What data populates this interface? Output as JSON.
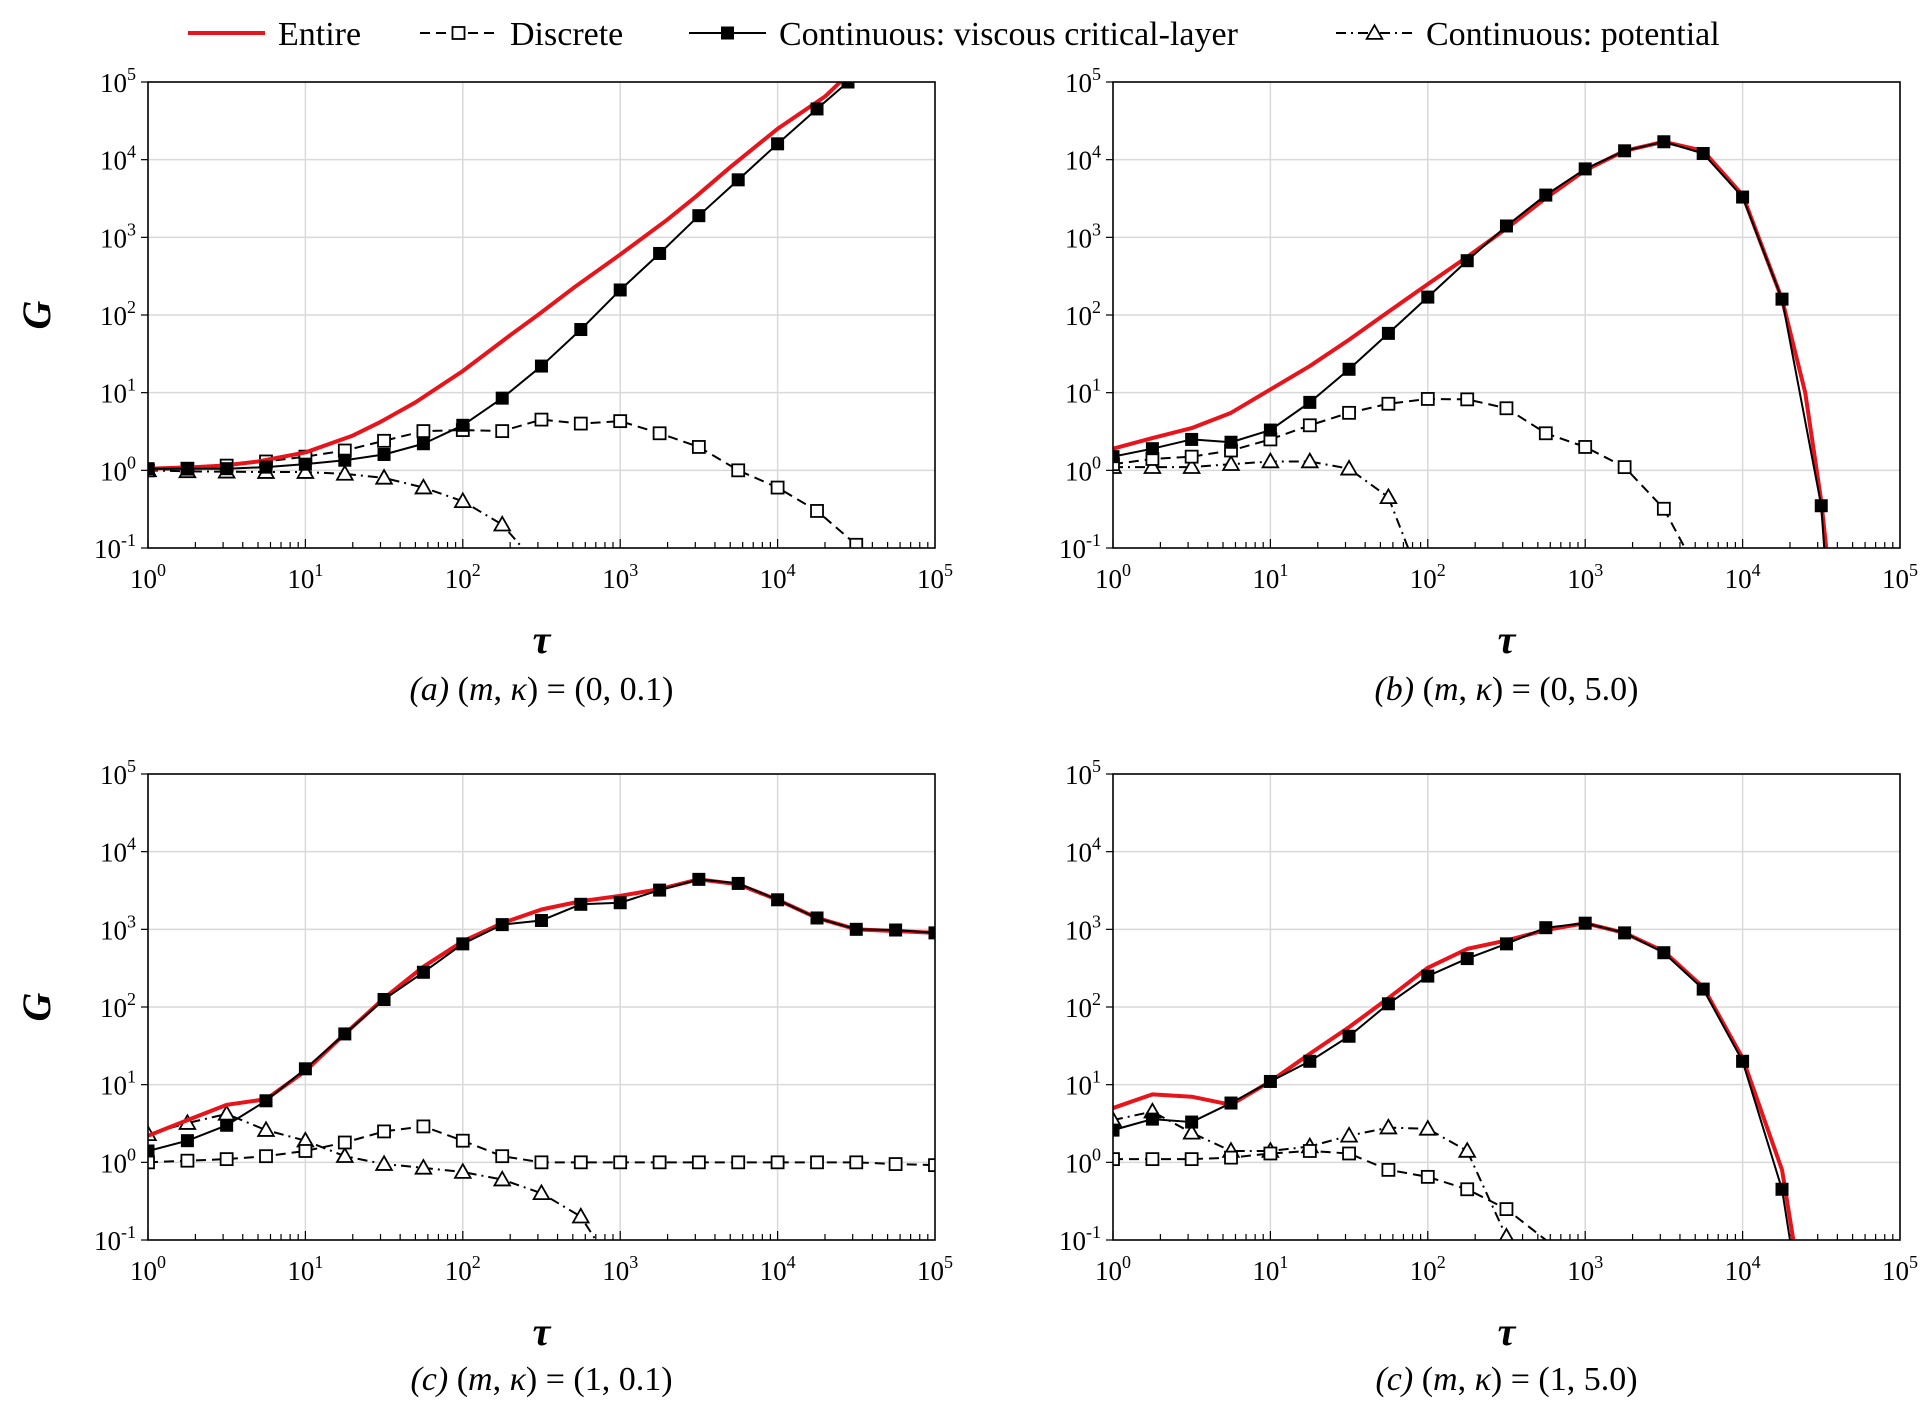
{
  "legend": [
    {
      "label": "Entire",
      "series_key": "entire",
      "color": "#e8141b",
      "style": "solid",
      "marker": "none"
    },
    {
      "label": "Discrete",
      "series_key": "discrete",
      "color": "#000000",
      "style": "dashed",
      "marker": "open-square"
    },
    {
      "label": "Continuous: viscous critical-layer",
      "series_key": "viscous",
      "color": "#000000",
      "style": "solid",
      "marker": "filled-square"
    },
    {
      "label": "Continuous: potential",
      "series_key": "potential",
      "color": "#000000",
      "style": "dash-dot",
      "marker": "open-triangle"
    }
  ],
  "chart_data": [
    {
      "id": "a",
      "type": "line",
      "caption": "(a) (m, κ) = (0, 0.1)",
      "xlabel": "τ",
      "ylabel": "G",
      "xscale": "log",
      "yscale": "log",
      "xlim": [
        1,
        100000
      ],
      "ylim": [
        0.1,
        100000
      ],
      "grid": true,
      "x_ticks": [
        "10^0",
        "10^1",
        "10^2",
        "10^3",
        "10^4",
        "10^5"
      ],
      "y_ticks": [
        "10^-1",
        "10^0",
        "10^1",
        "10^2",
        "10^3",
        "10^4",
        "10^5"
      ],
      "series": {
        "entire": [
          [
            1,
            1.05
          ],
          [
            2,
            1.1
          ],
          [
            3,
            1.15
          ],
          [
            5,
            1.3
          ],
          [
            10,
            1.7
          ],
          [
            20,
            2.8
          ],
          [
            30,
            4.2
          ],
          [
            50,
            7.5
          ],
          [
            100,
            19
          ],
          [
            200,
            55
          ],
          [
            300,
            100
          ],
          [
            500,
            220
          ],
          [
            1000,
            600
          ],
          [
            2000,
            1700
          ],
          [
            3000,
            3300
          ],
          [
            5000,
            8000
          ],
          [
            10000,
            25000
          ],
          [
            20000,
            65000
          ],
          [
            25000,
            100000
          ]
        ],
        "discrete": [
          [
            1,
            1.0
          ],
          [
            1.78,
            1.05
          ],
          [
            3.16,
            1.15
          ],
          [
            5.62,
            1.3
          ],
          [
            10,
            1.5
          ],
          [
            17.8,
            1.8
          ],
          [
            31.6,
            2.4
          ],
          [
            56.2,
            3.2
          ],
          [
            100,
            3.3
          ],
          [
            178,
            3.2
          ],
          [
            316,
            4.5
          ],
          [
            562,
            4.0
          ],
          [
            1000,
            4.3
          ],
          [
            1780,
            3.0
          ],
          [
            3160,
            2.0
          ],
          [
            5620,
            1.0
          ],
          [
            10000,
            0.6
          ],
          [
            17800,
            0.3
          ],
          [
            31600,
            0.11
          ]
        ],
        "viscous": [
          [
            1,
            1.05
          ],
          [
            1.78,
            1.05
          ],
          [
            3.16,
            1.05
          ],
          [
            5.62,
            1.1
          ],
          [
            10,
            1.2
          ],
          [
            17.8,
            1.35
          ],
          [
            31.6,
            1.6
          ],
          [
            56.2,
            2.2
          ],
          [
            100,
            3.8
          ],
          [
            178,
            8.5
          ],
          [
            316,
            22
          ],
          [
            562,
            65
          ],
          [
            1000,
            210
          ],
          [
            1780,
            620
          ],
          [
            3160,
            1900
          ],
          [
            5620,
            5500
          ],
          [
            10000,
            16000
          ],
          [
            17800,
            45000
          ],
          [
            28000,
            100000
          ]
        ],
        "potential": [
          [
            1,
            1.0
          ],
          [
            1.78,
            0.97
          ],
          [
            3.16,
            0.96
          ],
          [
            5.62,
            0.95
          ],
          [
            10,
            0.95
          ],
          [
            17.8,
            0.9
          ],
          [
            31.6,
            0.8
          ],
          [
            56.2,
            0.6
          ],
          [
            100,
            0.4
          ],
          [
            178,
            0.2
          ],
          [
            240,
            0.1
          ]
        ]
      }
    },
    {
      "id": "b",
      "type": "line",
      "caption": "(b) (m, κ) = (0, 5.0)",
      "xlabel": "τ",
      "ylabel": "",
      "xscale": "log",
      "yscale": "log",
      "xlim": [
        1,
        100000
      ],
      "ylim": [
        0.1,
        100000
      ],
      "grid": true,
      "x_ticks": [
        "10^0",
        "10^1",
        "10^2",
        "10^3",
        "10^4",
        "10^5"
      ],
      "y_ticks": [
        "10^-1",
        "10^0",
        "10^1",
        "10^2",
        "10^3",
        "10^4",
        "10^5"
      ],
      "series": {
        "entire": [
          [
            1,
            1.9
          ],
          [
            1.78,
            2.6
          ],
          [
            3.16,
            3.5
          ],
          [
            5.62,
            5.5
          ],
          [
            10,
            11
          ],
          [
            17.8,
            22
          ],
          [
            31.6,
            48
          ],
          [
            56.2,
            110
          ],
          [
            100,
            250
          ],
          [
            178,
            560
          ],
          [
            316,
            1300
          ],
          [
            562,
            3200
          ],
          [
            1000,
            7300
          ],
          [
            1780,
            13000
          ],
          [
            3160,
            17000
          ],
          [
            5620,
            13000
          ],
          [
            10000,
            3500
          ],
          [
            17800,
            160
          ],
          [
            25000,
            10
          ],
          [
            31600,
            0.4
          ],
          [
            34000,
            0.1
          ]
        ],
        "discrete": [
          [
            1,
            1.2
          ],
          [
            1.78,
            1.4
          ],
          [
            3.16,
            1.5
          ],
          [
            5.62,
            1.8
          ],
          [
            10,
            2.5
          ],
          [
            17.8,
            3.8
          ],
          [
            31.6,
            5.5
          ],
          [
            56.2,
            7.2
          ],
          [
            100,
            8.3
          ],
          [
            178,
            8.2
          ],
          [
            316,
            6.3
          ],
          [
            562,
            3.0
          ],
          [
            1000,
            2.0
          ],
          [
            1780,
            1.1
          ],
          [
            3160,
            0.32
          ],
          [
            4300,
            0.1
          ]
        ],
        "viscous": [
          [
            1,
            1.5
          ],
          [
            1.78,
            1.9
          ],
          [
            3.16,
            2.5
          ],
          [
            5.62,
            2.3
          ],
          [
            10,
            3.3
          ],
          [
            17.8,
            7.5
          ],
          [
            31.6,
            20
          ],
          [
            56.2,
            58
          ],
          [
            100,
            170
          ],
          [
            178,
            500
          ],
          [
            316,
            1400
          ],
          [
            562,
            3500
          ],
          [
            1000,
            7600
          ],
          [
            1780,
            13000
          ],
          [
            3160,
            17000
          ],
          [
            5620,
            12000
          ],
          [
            10000,
            3300
          ],
          [
            17800,
            160
          ],
          [
            31600,
            0.35
          ],
          [
            33000,
            0.1
          ]
        ],
        "potential": [
          [
            1,
            1.1
          ],
          [
            1.78,
            1.1
          ],
          [
            3.16,
            1.1
          ],
          [
            5.62,
            1.2
          ],
          [
            10,
            1.3
          ],
          [
            17.8,
            1.3
          ],
          [
            31.6,
            1.05
          ],
          [
            56.2,
            0.45
          ],
          [
            75,
            0.1
          ]
        ]
      }
    },
    {
      "id": "c1",
      "type": "line",
      "caption": "(c) (m, κ) = (1, 0.1)",
      "xlabel": "τ",
      "ylabel": "G",
      "xscale": "log",
      "yscale": "log",
      "xlim": [
        1,
        100000
      ],
      "ylim": [
        0.1,
        100000
      ],
      "grid": true,
      "x_ticks": [
        "10^0",
        "10^1",
        "10^2",
        "10^3",
        "10^4",
        "10^5"
      ],
      "y_ticks": [
        "10^-1",
        "10^0",
        "10^1",
        "10^2",
        "10^3",
        "10^4",
        "10^5"
      ],
      "series": {
        "entire": [
          [
            1,
            2.2
          ],
          [
            1.78,
            3.5
          ],
          [
            3.16,
            5.5
          ],
          [
            5.62,
            6.5
          ],
          [
            10,
            15
          ],
          [
            17.8,
            45
          ],
          [
            31.6,
            130
          ],
          [
            56.2,
            330
          ],
          [
            100,
            700
          ],
          [
            178,
            1200
          ],
          [
            316,
            1800
          ],
          [
            562,
            2300
          ],
          [
            1000,
            2700
          ],
          [
            1780,
            3300
          ],
          [
            3160,
            4400
          ],
          [
            5620,
            3800
          ],
          [
            10000,
            2400
          ],
          [
            17800,
            1400
          ],
          [
            31600,
            1000
          ],
          [
            56200,
            950
          ],
          [
            100000,
            900
          ]
        ],
        "discrete": [
          [
            1,
            1.0
          ],
          [
            1.78,
            1.05
          ],
          [
            3.16,
            1.1
          ],
          [
            5.62,
            1.2
          ],
          [
            10,
            1.4
          ],
          [
            17.8,
            1.8
          ],
          [
            31.6,
            2.5
          ],
          [
            56.2,
            2.9
          ],
          [
            100,
            1.9
          ],
          [
            178,
            1.2
          ],
          [
            316,
            1.0
          ],
          [
            562,
            1.0
          ],
          [
            1000,
            1.0
          ],
          [
            1780,
            1.0
          ],
          [
            3160,
            1.0
          ],
          [
            5620,
            1.0
          ],
          [
            10000,
            1.0
          ],
          [
            17800,
            1.0
          ],
          [
            31600,
            1.0
          ],
          [
            56200,
            0.95
          ],
          [
            100000,
            0.92
          ]
        ],
        "viscous": [
          [
            1,
            1.4
          ],
          [
            1.78,
            1.9
          ],
          [
            3.16,
            3.0
          ],
          [
            5.62,
            6.2
          ],
          [
            10,
            16
          ],
          [
            17.8,
            45
          ],
          [
            31.6,
            125
          ],
          [
            56.2,
            280
          ],
          [
            100,
            650
          ],
          [
            178,
            1150
          ],
          [
            316,
            1300
          ],
          [
            562,
            2100
          ],
          [
            1000,
            2200
          ],
          [
            1780,
            3200
          ],
          [
            3160,
            4400
          ],
          [
            5620,
            3900
          ],
          [
            10000,
            2400
          ],
          [
            17800,
            1400
          ],
          [
            31600,
            1000
          ],
          [
            56200,
            980
          ],
          [
            100000,
            900
          ]
        ],
        "potential": [
          [
            1,
            2.3
          ],
          [
            1.78,
            3.2
          ],
          [
            3.16,
            4.2
          ],
          [
            5.62,
            2.6
          ],
          [
            10,
            1.9
          ],
          [
            17.8,
            1.2
          ],
          [
            31.6,
            0.95
          ],
          [
            56.2,
            0.85
          ],
          [
            100,
            0.75
          ],
          [
            178,
            0.6
          ],
          [
            316,
            0.4
          ],
          [
            562,
            0.2
          ],
          [
            700,
            0.1
          ]
        ]
      }
    },
    {
      "id": "c2",
      "type": "line",
      "caption": "(c) (m, κ) = (1, 5.0)",
      "xlabel": "τ",
      "ylabel": "",
      "xscale": "log",
      "yscale": "log",
      "xlim": [
        1,
        100000
      ],
      "ylim": [
        0.1,
        100000
      ],
      "grid": true,
      "x_ticks": [
        "10^0",
        "10^1",
        "10^2",
        "10^3",
        "10^4",
        "10^5"
      ],
      "y_ticks": [
        "10^-1",
        "10^0",
        "10^1",
        "10^2",
        "10^3",
        "10^4",
        "10^5"
      ],
      "series": {
        "entire": [
          [
            1,
            5.0
          ],
          [
            1.78,
            7.5
          ],
          [
            3.16,
            7.0
          ],
          [
            5.62,
            5.5
          ],
          [
            10,
            11
          ],
          [
            17.8,
            25
          ],
          [
            31.6,
            55
          ],
          [
            56.2,
            130
          ],
          [
            100,
            320
          ],
          [
            178,
            560
          ],
          [
            316,
            720
          ],
          [
            562,
            980
          ],
          [
            1000,
            1200
          ],
          [
            1780,
            900
          ],
          [
            3160,
            520
          ],
          [
            5620,
            180
          ],
          [
            10000,
            22
          ],
          [
            17800,
            0.8
          ],
          [
            21000,
            0.1
          ]
        ],
        "discrete": [
          [
            1,
            1.1
          ],
          [
            1.78,
            1.1
          ],
          [
            3.16,
            1.1
          ],
          [
            5.62,
            1.15
          ],
          [
            10,
            1.3
          ],
          [
            17.8,
            1.4
          ],
          [
            31.6,
            1.3
          ],
          [
            56.2,
            0.8
          ],
          [
            100,
            0.65
          ],
          [
            178,
            0.45
          ],
          [
            316,
            0.25
          ],
          [
            562,
            0.1
          ]
        ],
        "viscous": [
          [
            1,
            2.6
          ],
          [
            1.78,
            3.6
          ],
          [
            3.16,
            3.3
          ],
          [
            5.62,
            5.8
          ],
          [
            10,
            11
          ],
          [
            17.8,
            20
          ],
          [
            31.6,
            42
          ],
          [
            56.2,
            110
          ],
          [
            100,
            250
          ],
          [
            178,
            420
          ],
          [
            316,
            650
          ],
          [
            562,
            1050
          ],
          [
            1000,
            1200
          ],
          [
            1780,
            900
          ],
          [
            3160,
            500
          ],
          [
            5620,
            170
          ],
          [
            10000,
            20
          ],
          [
            17800,
            0.45
          ],
          [
            20000,
            0.1
          ]
        ],
        "potential": [
          [
            1,
            3.5
          ],
          [
            1.78,
            4.5
          ],
          [
            3.16,
            2.4
          ],
          [
            5.62,
            1.4
          ],
          [
            10,
            1.4
          ],
          [
            17.8,
            1.6
          ],
          [
            31.6,
            2.2
          ],
          [
            56.2,
            2.8
          ],
          [
            100,
            2.7
          ],
          [
            178,
            1.4
          ],
          [
            316,
            0.11
          ]
        ]
      }
    }
  ]
}
